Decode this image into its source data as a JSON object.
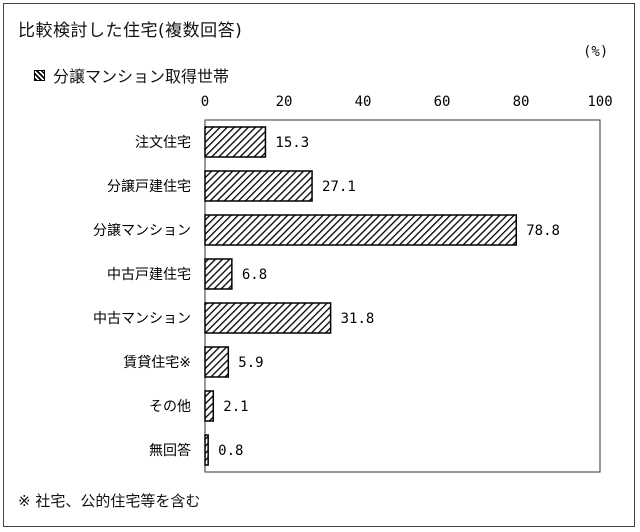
{
  "title": "比較検討した住宅(複数回答)",
  "unit": "(%)",
  "legend_label": "分譲マンション取得世帯",
  "footnote": "※ 社宅、公的住宅等を含む",
  "colors": {
    "bar_stroke": "#000000",
    "hatch": "#000000",
    "background": "#ffffff"
  },
  "chart_data": {
    "type": "bar",
    "orientation": "horizontal",
    "categories": [
      "注文住宅",
      "分譲戸建住宅",
      "分譲マンション",
      "中古戸建住宅",
      "中古マンション",
      "賃貸住宅※",
      "その他",
      "無回答"
    ],
    "series": [
      {
        "name": "分譲マンション取得世帯",
        "values": [
          15.3,
          27.1,
          78.8,
          6.8,
          31.8,
          5.9,
          2.1,
          0.8
        ]
      }
    ],
    "value_labels": [
      "15.3",
      "27.1",
      "78.8",
      "6.8",
      "31.8",
      "5.9",
      "2.1",
      "0.8"
    ],
    "xlim": [
      0,
      100
    ],
    "xticks": [
      0,
      20,
      40,
      60,
      80,
      100
    ],
    "xtick_labels": [
      "0",
      "20",
      "40",
      "60",
      "80",
      "100"
    ],
    "ylabel": "",
    "xlabel": "",
    "grid": false,
    "legend_position": "top-left"
  }
}
